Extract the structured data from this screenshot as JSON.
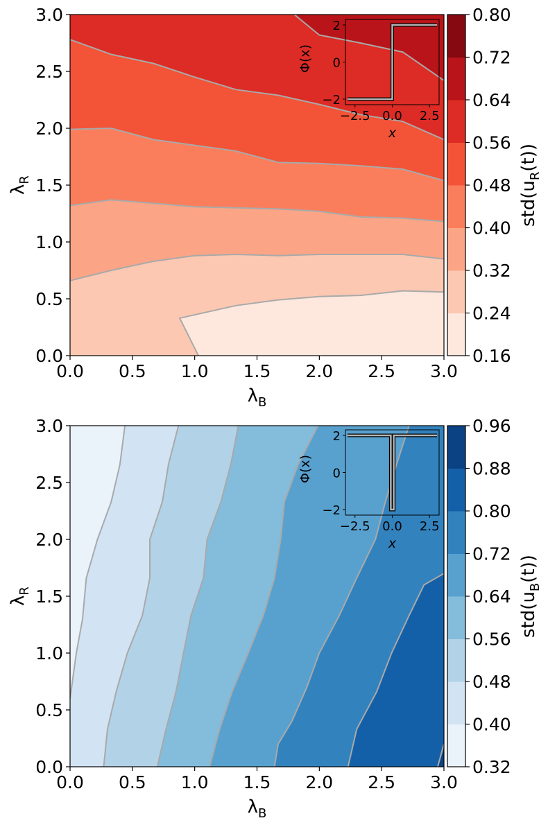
{
  "chart_data": [
    {
      "type": "contourf",
      "xlabel": "λ",
      "xlabel_sub": "B",
      "ylabel": "λ",
      "ylabel_sub": "R",
      "xlim": [
        0,
        3
      ],
      "ylim": [
        0,
        3
      ],
      "x_ticks": [
        "0.0",
        "0.5",
        "1.0",
        "1.5",
        "2.0",
        "2.5",
        "3.0"
      ],
      "y_ticks": [
        "0.0",
        "0.5",
        "1.0",
        "1.5",
        "2.0",
        "2.5",
        "3.0"
      ],
      "colorbar": {
        "label": "std(u",
        "label_sub": "R",
        "label_end": "(t))",
        "levels": [
          0.16,
          0.24,
          0.32,
          0.4,
          0.48,
          0.56,
          0.64,
          0.72,
          0.8
        ],
        "tick_labels": [
          "0.16",
          "0.24",
          "0.32",
          "0.40",
          "0.48",
          "0.56",
          "0.64",
          "0.72",
          "0.80"
        ],
        "colors": [
          "#fee8de",
          "#fcc8b1",
          "#fba586",
          "#fb7e5c",
          "#f35337",
          "#dd2b25",
          "#b81419",
          "#860811"
        ]
      },
      "contour_lines": [
        {
          "level": 0.24,
          "points": [
            [
              0.88,
              0.33
            ],
            [
              1.33,
              0.44
            ],
            [
              1.67,
              0.49
            ],
            [
              2.0,
              0.52
            ],
            [
              2.33,
              0.53
            ],
            [
              2.67,
              0.57
            ],
            [
              3.0,
              0.56
            ]
          ]
        },
        {
          "level": 0.32,
          "points": [
            [
              0.0,
              0.66
            ],
            [
              0.33,
              0.75
            ],
            [
              0.67,
              0.83
            ],
            [
              1.0,
              0.88
            ],
            [
              1.33,
              0.89
            ],
            [
              1.67,
              0.88
            ],
            [
              2.0,
              0.89
            ],
            [
              2.33,
              0.89
            ],
            [
              2.67,
              0.89
            ],
            [
              3.0,
              0.85
            ]
          ]
        },
        {
          "level": 0.4,
          "points": [
            [
              0.0,
              1.32
            ],
            [
              0.33,
              1.37
            ],
            [
              0.67,
              1.34
            ],
            [
              1.0,
              1.31
            ],
            [
              1.33,
              1.3
            ],
            [
              1.67,
              1.29
            ],
            [
              2.0,
              1.27
            ],
            [
              2.33,
              1.22
            ],
            [
              2.67,
              1.21
            ],
            [
              3.0,
              1.18
            ]
          ]
        },
        {
          "level": 0.48,
          "points": [
            [
              0.0,
              1.99
            ],
            [
              0.33,
              2.0
            ],
            [
              0.67,
              1.9
            ],
            [
              1.0,
              1.85
            ],
            [
              1.33,
              1.8
            ],
            [
              1.67,
              1.7
            ],
            [
              2.0,
              1.69
            ],
            [
              2.33,
              1.67
            ],
            [
              2.67,
              1.64
            ],
            [
              3.0,
              1.54
            ]
          ]
        },
        {
          "level": 0.56,
          "points": [
            [
              0.0,
              2.78
            ],
            [
              0.33,
              2.65
            ],
            [
              0.67,
              2.57
            ],
            [
              1.0,
              2.45
            ],
            [
              1.33,
              2.34
            ],
            [
              1.67,
              2.29
            ],
            [
              2.0,
              2.21
            ],
            [
              2.33,
              2.12
            ],
            [
              2.67,
              2.06
            ],
            [
              3.0,
              1.9
            ]
          ]
        },
        {
          "level": 0.64,
          "points": [
            [
              1.8,
              3.0
            ],
            [
              2.0,
              2.82
            ],
            [
              2.33,
              2.75
            ],
            [
              2.67,
              2.67
            ],
            [
              3.0,
              2.42
            ]
          ]
        }
      ],
      "inset": {
        "xlabel": "x",
        "ylabel": "Φ(x)",
        "xlim": [
          -3.14,
          3.14
        ],
        "ylim": [
          -2.3,
          2.3
        ],
        "x_ticks": [
          "−2.5",
          "0.0",
          "2.5"
        ],
        "y_ticks": [
          "2",
          "0",
          "−2"
        ],
        "function": "step",
        "curve": [
          [
            -3.0,
            -2.0
          ],
          [
            0.0,
            -2.0
          ],
          [
            0.0,
            2.0
          ],
          [
            3.0,
            2.0
          ]
        ]
      }
    },
    {
      "type": "contourf",
      "xlabel": "λ",
      "xlabel_sub": "B",
      "ylabel": "λ",
      "ylabel_sub": "R",
      "xlim": [
        0,
        3
      ],
      "ylim": [
        0,
        3
      ],
      "x_ticks": [
        "0.0",
        "0.5",
        "1.0",
        "1.5",
        "2.0",
        "2.5",
        "3.0"
      ],
      "y_ticks": [
        "0.0",
        "0.5",
        "1.0",
        "1.5",
        "2.0",
        "2.5",
        "3.0"
      ],
      "colorbar": {
        "label": "std(u",
        "label_sub": "B",
        "label_end": "(t))",
        "levels": [
          0.32,
          0.4,
          0.48,
          0.56,
          0.64,
          0.72,
          0.8,
          0.88,
          0.96
        ],
        "tick_labels": [
          "0.32",
          "0.40",
          "0.48",
          "0.56",
          "0.64",
          "0.72",
          "0.80",
          "0.88",
          "0.96"
        ],
        "colors": [
          "#eaf2fa",
          "#d2e3f3",
          "#b2d2e8",
          "#84bcdb",
          "#58a1cf",
          "#3282be",
          "#1460a8",
          "#0b4284"
        ]
      },
      "contour_lines": [
        {
          "level": 0.4,
          "points": [
            [
              0.0,
              0.6
            ],
            [
              0.05,
              1.0
            ],
            [
              0.1,
              1.3
            ],
            [
              0.13,
              1.66
            ],
            [
              0.22,
              2.0
            ],
            [
              0.33,
              2.33
            ],
            [
              0.4,
              2.66
            ],
            [
              0.44,
              3.0
            ]
          ]
        },
        {
          "level": 0.48,
          "points": [
            [
              0.27,
              0.0
            ],
            [
              0.3,
              0.33
            ],
            [
              0.37,
              0.66
            ],
            [
              0.46,
              1.0
            ],
            [
              0.58,
              1.33
            ],
            [
              0.64,
              1.66
            ],
            [
              0.64,
              2.0
            ],
            [
              0.74,
              2.33
            ],
            [
              0.79,
              2.66
            ],
            [
              0.87,
              3.0
            ]
          ]
        },
        {
          "level": 0.56,
          "points": [
            [
              0.7,
              0.0
            ],
            [
              0.77,
              0.33
            ],
            [
              0.85,
              0.66
            ],
            [
              0.91,
              1.0
            ],
            [
              0.97,
              1.33
            ],
            [
              1.07,
              1.66
            ],
            [
              1.1,
              2.0
            ],
            [
              1.21,
              2.33
            ],
            [
              1.29,
              2.66
            ],
            [
              1.35,
              3.0
            ]
          ]
        },
        {
          "level": 0.64,
          "points": [
            [
              1.12,
              0.0
            ],
            [
              1.2,
              0.33
            ],
            [
              1.3,
              0.66
            ],
            [
              1.43,
              1.0
            ],
            [
              1.55,
              1.33
            ],
            [
              1.64,
              1.66
            ],
            [
              1.69,
              2.0
            ],
            [
              1.72,
              2.33
            ],
            [
              1.83,
              2.66
            ],
            [
              1.99,
              3.0
            ]
          ]
        },
        {
          "level": 0.72,
          "points": [
            [
              1.64,
              0.0
            ],
            [
              1.67,
              0.2
            ],
            [
              1.78,
              0.4
            ],
            [
              1.9,
              0.7
            ],
            [
              2.0,
              1.0
            ],
            [
              2.16,
              1.33
            ],
            [
              2.3,
              1.66
            ],
            [
              2.45,
              2.0
            ],
            [
              2.53,
              2.33
            ],
            [
              2.62,
              2.66
            ],
            [
              2.72,
              3.0
            ]
          ]
        },
        {
          "level": 0.8,
          "points": [
            [
              2.23,
              0.0
            ],
            [
              2.3,
              0.33
            ],
            [
              2.46,
              0.66
            ],
            [
              2.58,
              1.0
            ],
            [
              2.72,
              1.33
            ],
            [
              2.84,
              1.6
            ],
            [
              3.0,
              1.7
            ]
          ]
        },
        {
          "level": 0.88,
          "points": [
            [
              2.95,
              0.0
            ],
            [
              3.0,
              0.2
            ]
          ]
        }
      ],
      "inset": {
        "xlabel": "x",
        "ylabel": "Φ(x)",
        "xlim": [
          -3.14,
          3.14
        ],
        "ylim": [
          -2.3,
          2.3
        ],
        "x_ticks": [
          "−2.5",
          "0.0",
          "2.5"
        ],
        "y_ticks": [
          "2",
          "0",
          "−2"
        ],
        "function": "notch",
        "curve": [
          [
            -3.0,
            2.0
          ],
          [
            -0.1,
            2.0
          ],
          [
            -0.1,
            -2.0
          ],
          [
            0.1,
            -2.0
          ],
          [
            0.1,
            2.0
          ],
          [
            3.0,
            2.0
          ]
        ]
      }
    }
  ]
}
